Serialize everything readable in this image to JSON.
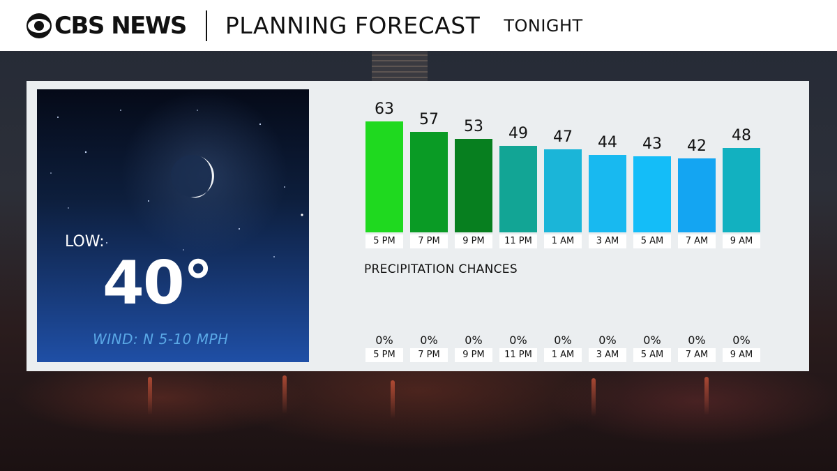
{
  "header": {
    "logo_text": "CBS NEWS",
    "title": "PLANNING FORECAST",
    "subtitle": "TONIGHT"
  },
  "card": {
    "low_label": "LOW:",
    "low_value": "40°",
    "wind": "WIND: N 5-10 MPH"
  },
  "chart_data": {
    "type": "bar",
    "categories": [
      "5 PM",
      "7 PM",
      "9 PM",
      "11 PM",
      "1 AM",
      "3 AM",
      "5 AM",
      "7 AM",
      "9 AM"
    ],
    "values": [
      63,
      57,
      53,
      49,
      47,
      44,
      43,
      42,
      48
    ],
    "colors": [
      "#1fd91f",
      "#0a9b25",
      "#077f1f",
      "#12a595",
      "#1bb5d8",
      "#18b9f0",
      "#14bdf8",
      "#14a5f2",
      "#12b1c0"
    ],
    "ylim": [
      0,
      63
    ],
    "precipitation_title": "PRECIPITATION CHANCES",
    "precipitation": [
      "0%",
      "0%",
      "0%",
      "0%",
      "0%",
      "0%",
      "0%",
      "0%",
      "0%"
    ]
  }
}
